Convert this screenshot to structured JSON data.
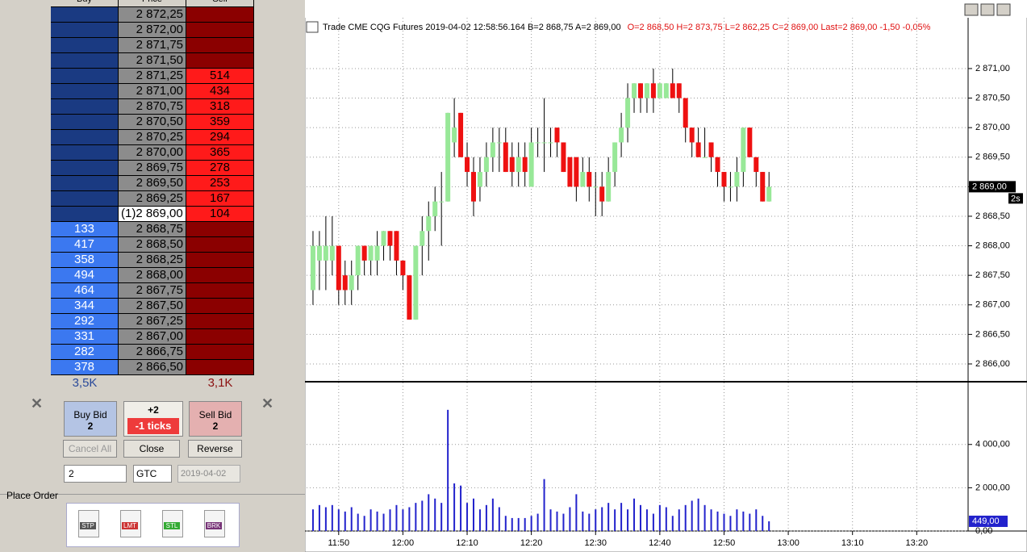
{
  "dom": {
    "headers": [
      "Buy",
      "Price",
      "Sell"
    ],
    "rows": [
      {
        "price": "2 872,25"
      },
      {
        "price": "2 872,00"
      },
      {
        "price": "2 871,75"
      },
      {
        "price": "2 871,50"
      },
      {
        "price": "2 871,25",
        "sell": 514
      },
      {
        "price": "2 871,00",
        "sell": 434
      },
      {
        "price": "2 870,75",
        "sell": 318
      },
      {
        "price": "2 870,50",
        "sell": 359
      },
      {
        "price": "2 870,25",
        "sell": 294
      },
      {
        "price": "2 870,00",
        "sell": 365
      },
      {
        "price": "2 869,75",
        "sell": 278
      },
      {
        "price": "2 869,50",
        "sell": 253
      },
      {
        "price": "2 869,25",
        "sell": 167
      },
      {
        "price": "(1)2 869,00",
        "sell": 104
      },
      {
        "price": "2 868,75",
        "buy": 133
      },
      {
        "price": "2 868,50",
        "buy": 417
      },
      {
        "price": "2 868,25",
        "buy": 358
      },
      {
        "price": "2 868,00",
        "buy": 494
      },
      {
        "price": "2 867,75",
        "buy": 464
      },
      {
        "price": "2 867,50",
        "buy": 344
      },
      {
        "price": "2 867,25",
        "buy": 292
      },
      {
        "price": "2 867,00",
        "buy": 331
      },
      {
        "price": "2 866,75",
        "buy": 282
      },
      {
        "price": "2 866,50",
        "buy": 378
      }
    ],
    "buy_total": "3,5K",
    "sell_total": "3,1K"
  },
  "order_entry": {
    "buy_bid": "Buy Bid",
    "buy_qty": "2",
    "offset": "+2",
    "ticks": "-1 ticks",
    "sell_bid": "Sell Bid",
    "sell_qty": "2",
    "cancel_all": "Cancel All",
    "close": "Close",
    "reverse": "Reverse",
    "quantity": "2",
    "tif": "GTC",
    "date": "2019-04-02",
    "place_order": "Place Order",
    "order_types": [
      "STP",
      "LMT",
      "STL",
      "BRK"
    ]
  },
  "chart_data": [
    {
      "type": "candlestick",
      "title": "Trade  CME  CQG  Futures  2019-04-02  12:58:56.164  B=2 868,75  A=2 869,00",
      "subtitle": "O=2 868,50  H=2 873,75  L=2 862,25  C=2 869,00  Last=2 869,00  -1,50  -0,05%",
      "up_color": "#98e898",
      "down_color": "#ee1111",
      "grid": true,
      "x": [
        "11:46",
        "11:47",
        "11:48",
        "11:49",
        "11:50",
        "11:51",
        "11:52",
        "11:53",
        "11:54",
        "11:55",
        "11:56",
        "11:57",
        "11:58",
        "11:59",
        "12:00",
        "12:01",
        "12:02",
        "12:03",
        "12:04",
        "12:05",
        "12:06",
        "12:07",
        "12:08",
        "12:09",
        "12:10",
        "12:11",
        "12:12",
        "12:13",
        "12:14",
        "12:15",
        "12:16",
        "12:17",
        "12:18",
        "12:19",
        "12:20",
        "12:21",
        "12:22",
        "12:23",
        "12:24",
        "12:25",
        "12:26",
        "12:27",
        "12:28",
        "12:29",
        "12:30",
        "12:31",
        "12:32",
        "12:33",
        "12:34",
        "12:35",
        "12:36",
        "12:37",
        "12:38",
        "12:39",
        "12:40",
        "12:41",
        "12:42",
        "12:43",
        "12:44",
        "12:45",
        "12:46",
        "12:47",
        "12:48",
        "12:49",
        "12:50",
        "12:51",
        "12:52",
        "12:53",
        "12:54",
        "12:55",
        "12:56",
        "12:57"
      ],
      "open": [
        2867.25,
        2867.75,
        2867.75,
        2867.75,
        2868.0,
        2867.5,
        2867.25,
        2867.5,
        2868.0,
        2867.75,
        2867.75,
        2868.0,
        2868.25,
        2868.25,
        2867.75,
        2867.5,
        2866.75,
        2868.0,
        2868.25,
        2868.5,
        2868.75,
        2868.75,
        2869.75,
        2870.25,
        2869.5,
        2869.25,
        2869.0,
        2869.25,
        2869.5,
        2869.75,
        2869.75,
        2869.5,
        2869.25,
        2869.5,
        2869.0,
        2869.75,
        2869.75,
        2869.75,
        2870.0,
        2869.75,
        2869.5,
        2869.5,
        2869.0,
        2869.25,
        2869.0,
        2869.0,
        2868.75,
        2869.25,
        2869.75,
        2870.0,
        2870.5,
        2870.75,
        2870.5,
        2870.75,
        2870.5,
        2870.5,
        2870.75,
        2870.75,
        2870.5,
        2870.0,
        2869.75,
        2869.5,
        2869.75,
        2869.5,
        2869.25,
        2869.0,
        2869.0,
        2869.25,
        2870.0,
        2869.5,
        2869.25,
        2868.75
      ],
      "high": [
        2868.25,
        2868.25,
        2868.5,
        2868.5,
        2868.0,
        2867.75,
        2867.75,
        2868.0,
        2868.0,
        2868.0,
        2868.25,
        2868.25,
        2868.25,
        2868.25,
        2867.75,
        2867.5,
        2868.0,
        2868.5,
        2868.75,
        2869.0,
        2869.25,
        2870.25,
        2870.5,
        2870.25,
        2869.75,
        2869.5,
        2869.5,
        2869.75,
        2870.0,
        2870.0,
        2870.0,
        2869.75,
        2869.75,
        2869.75,
        2870.0,
        2870.0,
        2870.5,
        2870.0,
        2870.0,
        2869.75,
        2869.5,
        2869.5,
        2869.5,
        2869.5,
        2869.25,
        2869.25,
        2869.5,
        2869.75,
        2870.25,
        2870.75,
        2870.75,
        2870.75,
        2870.75,
        2871.0,
        2870.75,
        2870.75,
        2871.0,
        2870.75,
        2870.5,
        2870.0,
        2870.0,
        2870.0,
        2869.75,
        2869.5,
        2869.25,
        2869.25,
        2869.5,
        2870.0,
        2870.0,
        2869.5,
        2869.25,
        2869.25
      ],
      "low": [
        2867.0,
        2867.25,
        2867.25,
        2867.5,
        2867.0,
        2867.0,
        2867.0,
        2867.25,
        2867.5,
        2867.5,
        2867.5,
        2867.75,
        2867.75,
        2867.5,
        2867.25,
        2866.75,
        2866.75,
        2867.5,
        2867.75,
        2868.25,
        2868.0,
        2868.75,
        2869.5,
        2869.5,
        2869.0,
        2868.5,
        2868.75,
        2869.0,
        2869.25,
        2869.25,
        2869.25,
        2869.0,
        2869.0,
        2869.0,
        2869.0,
        2869.5,
        2869.25,
        2869.5,
        2869.5,
        2869.25,
        2869.0,
        2868.75,
        2869.0,
        2868.75,
        2868.5,
        2868.5,
        2868.75,
        2869.0,
        2869.5,
        2869.75,
        2870.25,
        2870.25,
        2870.25,
        2870.25,
        2870.5,
        2870.5,
        2870.5,
        2870.25,
        2869.75,
        2869.5,
        2869.5,
        2869.5,
        2869.25,
        2869.0,
        2868.75,
        2868.75,
        2868.75,
        2869.0,
        2869.5,
        2869.0,
        2868.75,
        2868.75
      ],
      "close": [
        2868.0,
        2868.0,
        2868.0,
        2868.0,
        2867.25,
        2867.25,
        2867.5,
        2868.0,
        2867.75,
        2868.0,
        2868.0,
        2868.25,
        2868.0,
        2867.75,
        2867.5,
        2866.75,
        2868.0,
        2868.25,
        2868.5,
        2868.75,
        2868.75,
        2870.25,
        2870.0,
        2869.5,
        2869.25,
        2868.75,
        2869.25,
        2869.5,
        2869.75,
        2869.75,
        2869.25,
        2869.25,
        2869.5,
        2869.25,
        2869.75,
        2869.75,
        2869.75,
        2869.75,
        2869.75,
        2869.25,
        2869.0,
        2869.0,
        2869.25,
        2869.0,
        2869.0,
        2868.75,
        2869.25,
        2869.75,
        2870.0,
        2870.5,
        2870.75,
        2870.5,
        2870.75,
        2870.5,
        2870.75,
        2870.75,
        2870.5,
        2870.5,
        2870.0,
        2869.75,
        2869.5,
        2869.5,
        2869.5,
        2869.25,
        2869.0,
        2869.0,
        2869.25,
        2870.0,
        2869.5,
        2869.25,
        2868.75,
        2869.0
      ],
      "xlim": [
        "11:45",
        "13:28"
      ],
      "xticks": [
        "11:50",
        "12:00",
        "12:10",
        "12:20",
        "12:30",
        "12:40",
        "12:50",
        "13:00",
        "13:10",
        "13:20"
      ],
      "ylim": [
        2865.74,
        2871.86
      ],
      "yticks": [
        {
          "value": 2866.0,
          "label": "2 866,00"
        },
        {
          "value": 2866.5,
          "label": "2 866,50"
        },
        {
          "value": 2867.0,
          "label": "2 867,00"
        },
        {
          "value": 2867.5,
          "label": "2 867,50"
        },
        {
          "value": 2868.0,
          "label": "2 868,00"
        },
        {
          "value": 2868.5,
          "label": "2 868,50"
        },
        {
          "value": 2869.0,
          "label": "2 869,00"
        },
        {
          "value": 2869.5,
          "label": "2 869,50"
        },
        {
          "value": 2870.0,
          "label": "2 870,00"
        },
        {
          "value": 2870.5,
          "label": "2 870,50"
        },
        {
          "value": 2871.0,
          "label": "2 871,00"
        }
      ],
      "last": {
        "value": 2869.0,
        "label": "2 869,00"
      },
      "bar_timer": "2s"
    },
    {
      "type": "bar",
      "color": "#2222cc",
      "grid": true,
      "x": [
        "11:46",
        "11:47",
        "11:48",
        "11:49",
        "11:50",
        "11:51",
        "11:52",
        "11:53",
        "11:54",
        "11:55",
        "11:56",
        "11:57",
        "11:58",
        "11:59",
        "12:00",
        "12:01",
        "12:02",
        "12:03",
        "12:04",
        "12:05",
        "12:06",
        "12:07",
        "12:08",
        "12:09",
        "12:10",
        "12:11",
        "12:12",
        "12:13",
        "12:14",
        "12:15",
        "12:16",
        "12:17",
        "12:18",
        "12:19",
        "12:20",
        "12:21",
        "12:22",
        "12:23",
        "12:24",
        "12:25",
        "12:26",
        "12:27",
        "12:28",
        "12:29",
        "12:30",
        "12:31",
        "12:32",
        "12:33",
        "12:34",
        "12:35",
        "12:36",
        "12:37",
        "12:38",
        "12:39",
        "12:40",
        "12:41",
        "12:42",
        "12:43",
        "12:44",
        "12:45",
        "12:46",
        "12:47",
        "12:48",
        "12:49",
        "12:50",
        "12:51",
        "12:52",
        "12:53",
        "12:54",
        "12:55",
        "12:56",
        "12:57"
      ],
      "values": [
        1000,
        1200,
        1100,
        1200,
        1000,
        900,
        1100,
        800,
        700,
        1000,
        900,
        800,
        1000,
        1200,
        1000,
        1100,
        1300,
        1400,
        1700,
        1500,
        1300,
        5600,
        2200,
        2100,
        1300,
        1500,
        1000,
        1200,
        1500,
        1100,
        700,
        600,
        600,
        600,
        700,
        800,
        2400,
        1000,
        900,
        800,
        1100,
        1700,
        900,
        800,
        1000,
        1100,
        1300,
        1000,
        1300,
        1000,
        1500,
        1200,
        1000,
        800,
        1200,
        1100,
        700,
        1000,
        1200,
        1400,
        1500,
        1200,
        1000,
        900,
        800,
        700,
        1000,
        900,
        800,
        1000,
        700,
        449
      ],
      "xlim": [
        "11:45",
        "13:28"
      ],
      "ylim": [
        0,
        6750
      ],
      "yticks": [
        {
          "value": 0,
          "label": "0,00"
        },
        {
          "value": 2000,
          "label": "2 000,00"
        },
        {
          "value": 4000,
          "label": "4 000,00"
        }
      ],
      "last": {
        "value": 449,
        "label": "449,00"
      }
    }
  ]
}
